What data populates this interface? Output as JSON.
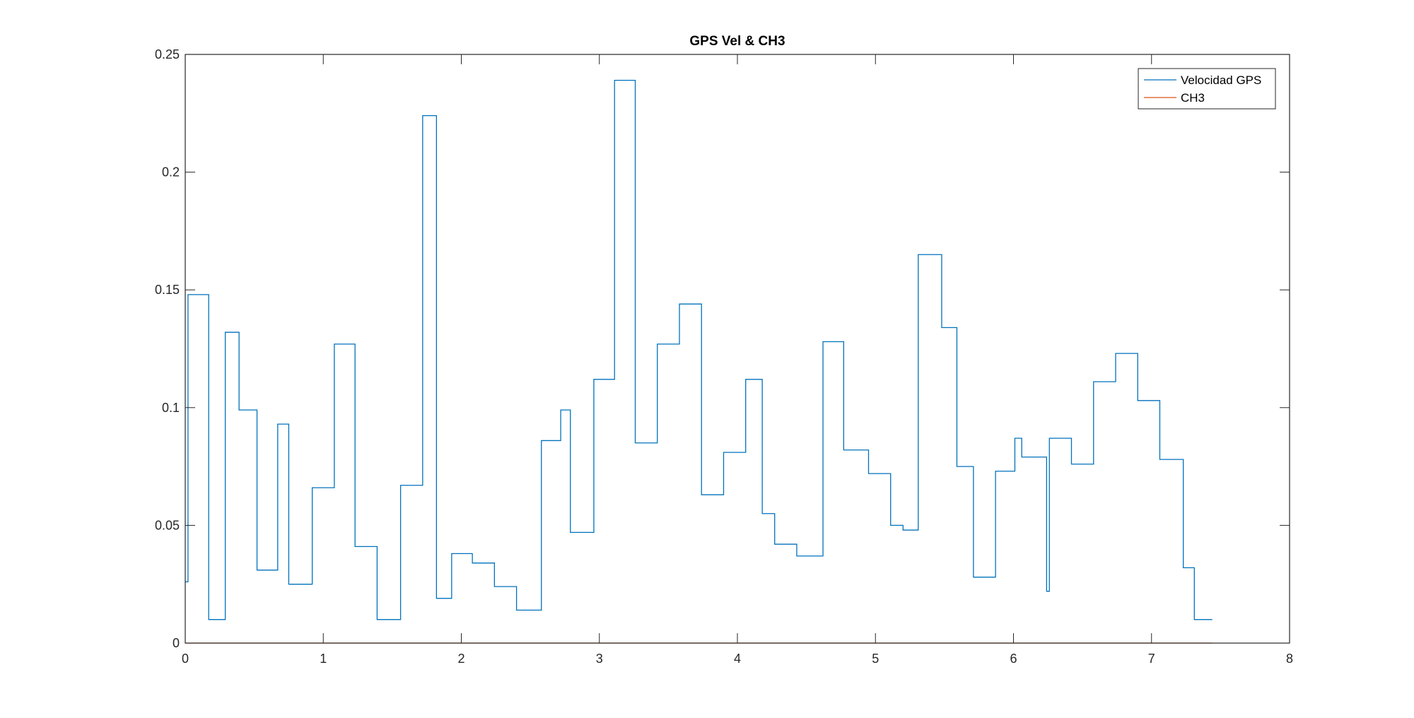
{
  "chart_data": {
    "type": "line",
    "title": "GPS Vel & CH3",
    "xlabel": "",
    "ylabel": "",
    "xlim": [
      0,
      8
    ],
    "ylim": [
      0,
      0.25
    ],
    "x_ticks": [
      0,
      1,
      2,
      3,
      4,
      5,
      6,
      7,
      8
    ],
    "x_tick_labels": [
      "0",
      "1",
      "2",
      "3",
      "4",
      "5",
      "6",
      "7",
      "8"
    ],
    "y_ticks": [
      0,
      0.05,
      0.1,
      0.15,
      0.2,
      0.25
    ],
    "y_tick_labels": [
      "0",
      "0.05",
      "0.1",
      "0.15",
      "0.2",
      "0.25"
    ],
    "grid": false,
    "legend_position": "top-right",
    "series": [
      {
        "name": "Velocidad GPS",
        "color": "#0072BD",
        "style": "step",
        "x": [
          0,
          0.02,
          0.17,
          0.29,
          0.39,
          0.52,
          0.67,
          0.75,
          0.92,
          1.08,
          1.23,
          1.39,
          1.56,
          1.72,
          1.82,
          1.93,
          2.08,
          2.24,
          2.4,
          2.58,
          2.72,
          2.79,
          2.96,
          3.11,
          3.26,
          3.42,
          3.58,
          3.74,
          3.9,
          4.06,
          4.18,
          4.27,
          4.43,
          4.62,
          4.77,
          4.95,
          5.11,
          5.2,
          5.31,
          5.48,
          5.59,
          5.71,
          5.87,
          6.01,
          6.06,
          6.24,
          6.26,
          6.42,
          6.58,
          6.74,
          6.9,
          7.06,
          7.23,
          7.31,
          7.44
        ],
        "y": [
          0.026,
          0.148,
          0.01,
          0.132,
          0.099,
          0.031,
          0.093,
          0.025,
          0.066,
          0.127,
          0.041,
          0.01,
          0.067,
          0.224,
          0.019,
          0.038,
          0.034,
          0.024,
          0.014,
          0.086,
          0.099,
          0.047,
          0.112,
          0.239,
          0.085,
          0.127,
          0.144,
          0.063,
          0.081,
          0.112,
          0.055,
          0.042,
          0.037,
          0.128,
          0.082,
          0.072,
          0.05,
          0.048,
          0.165,
          0.134,
          0.075,
          0.028,
          0.073,
          0.087,
          0.079,
          0.022,
          0.087,
          0.076,
          0.111,
          0.123,
          0.103,
          0.078,
          0.032,
          0.01,
          0.01
        ]
      },
      {
        "name": "CH3",
        "color": "#D95319",
        "style": "line",
        "x": [
          0,
          7.44
        ],
        "y": [
          0,
          0
        ]
      }
    ]
  }
}
